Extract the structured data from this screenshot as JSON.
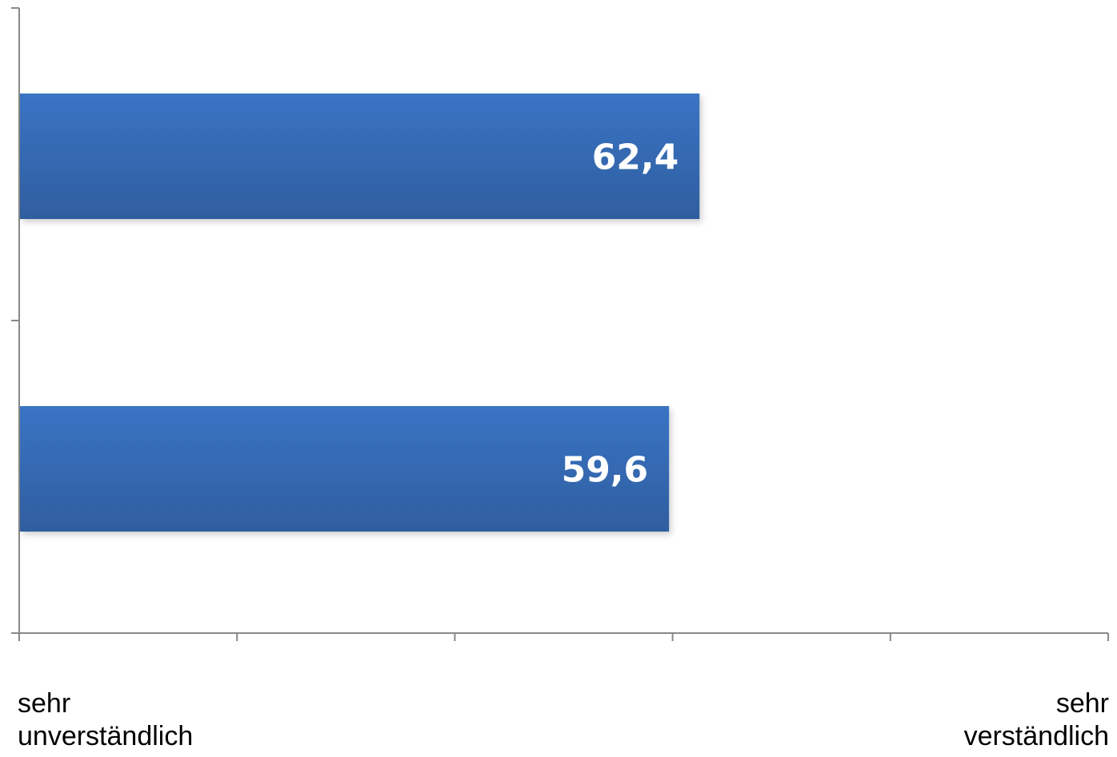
{
  "chart_data": {
    "type": "bar",
    "orientation": "horizontal",
    "categories": [
      "",
      ""
    ],
    "values": [
      62.4,
      59.6
    ],
    "data_labels": [
      "62,4",
      "59,6"
    ],
    "xlim": [
      0,
      100
    ],
    "x_ticks": [
      0,
      20,
      40,
      60,
      80,
      100
    ],
    "axis_end_labels": {
      "left": {
        "line1": "sehr",
        "line2": "unverständlich"
      },
      "right": {
        "line1": "sehr",
        "line2": "verständlich"
      }
    },
    "grid": false,
    "legend": "none",
    "bar_color": "#3a74c4",
    "bar_color_dark": "#2f5e9f",
    "axis_color": "#888888"
  }
}
